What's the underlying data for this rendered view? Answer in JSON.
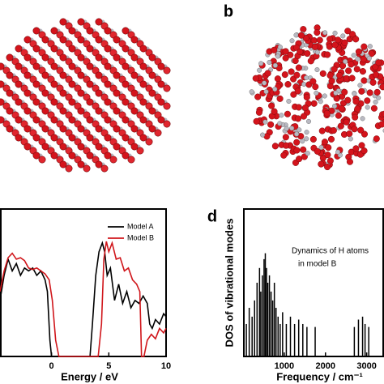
{
  "figure": {
    "panel_labels": [
      "b",
      "d"
    ]
  },
  "chart_data": [
    {
      "type": "line",
      "xlabel": "Energy / eV",
      "xlim": [
        -4.5,
        10
      ],
      "xticks": [
        0,
        5,
        10
      ],
      "ylim": [
        0,
        1
      ],
      "legend": "upper right",
      "series": [
        {
          "name": "Model A",
          "color": "#000000",
          "x": [
            -4.5,
            -4.14,
            -3.79,
            -3.43,
            -3.07,
            -2.71,
            -2.36,
            -2.0,
            -1.64,
            -1.29,
            -0.93,
            -0.57,
            -0.36,
            -0.14,
            0,
            3.36,
            3.57,
            3.86,
            4.14,
            4.43,
            4.64,
            4.86,
            5.14,
            5.5,
            5.86,
            6.21,
            6.57,
            6.93,
            7.29,
            7.64,
            8.0,
            8.36,
            8.57,
            8.79,
            9.07,
            9.43,
            9.79,
            10.0
          ],
          "values": [
            0.38,
            0.55,
            0.66,
            0.58,
            0.63,
            0.55,
            0.6,
            0.58,
            0.6,
            0.55,
            0.58,
            0.52,
            0.44,
            0.11,
            0,
            0,
            0.22,
            0.55,
            0.71,
            0.77,
            0.71,
            0.55,
            0.6,
            0.38,
            0.49,
            0.36,
            0.44,
            0.33,
            0.38,
            0.36,
            0.41,
            0.36,
            0.22,
            0.19,
            0.25,
            0.22,
            0.29,
            0.27
          ]
        },
        {
          "name": "Model B",
          "color": "#d0161b",
          "x": [
            -4.5,
            -4.14,
            -3.79,
            -3.43,
            -3.07,
            -2.71,
            -2.36,
            -2.0,
            -1.64,
            -1.29,
            -0.93,
            -0.57,
            -0.21,
            0.07,
            0.36,
            0.64,
            4.07,
            4.36,
            4.57,
            4.79,
            5.0,
            5.29,
            5.64,
            6.0,
            6.36,
            6.71,
            7.07,
            7.43,
            7.71,
            7.86,
            8.07,
            8.36,
            8.71,
            9.07,
            9.43,
            9.79,
            10.0
          ],
          "values": [
            0.44,
            0.58,
            0.67,
            0.7,
            0.66,
            0.67,
            0.65,
            0.6,
            0.59,
            0.6,
            0.58,
            0.56,
            0.52,
            0.38,
            0.11,
            0,
            0,
            0.22,
            0.66,
            0.78,
            0.71,
            0.77,
            0.66,
            0.67,
            0.58,
            0.6,
            0.52,
            0.49,
            0.44,
            0,
            0,
            0.11,
            0.15,
            0.12,
            0.19,
            0.16,
            0.19
          ]
        }
      ]
    },
    {
      "type": "stem",
      "xlabel": "Frequency / cm⁻¹",
      "ylabel": "DOS of vibrational modes",
      "annotation": [
        "Dynamics of H atoms",
        "in model B"
      ],
      "xlim": [
        0,
        3400
      ],
      "xticks": [
        1000,
        2000,
        3000
      ],
      "ylim": [
        0,
        1
      ],
      "color": "#000000",
      "x": [
        80,
        150,
        220,
        280,
        340,
        400,
        430,
        470,
        510,
        540,
        570,
        600,
        640,
        680,
        720,
        760,
        800,
        850,
        900,
        960,
        1050,
        1150,
        1250,
        1350,
        1450,
        1550,
        1750,
        2700,
        2800,
        2900,
        2960,
        3050
      ],
      "values": [
        0.22,
        0.33,
        0.27,
        0.38,
        0.5,
        0.6,
        0.44,
        0.55,
        0.66,
        0.7,
        0.6,
        0.5,
        0.55,
        0.44,
        0.38,
        0.5,
        0.33,
        0.27,
        0.22,
        0.3,
        0.22,
        0.27,
        0.22,
        0.25,
        0.22,
        0.2,
        0.2,
        0.2,
        0.25,
        0.27,
        0.22,
        0.2
      ]
    }
  ]
}
